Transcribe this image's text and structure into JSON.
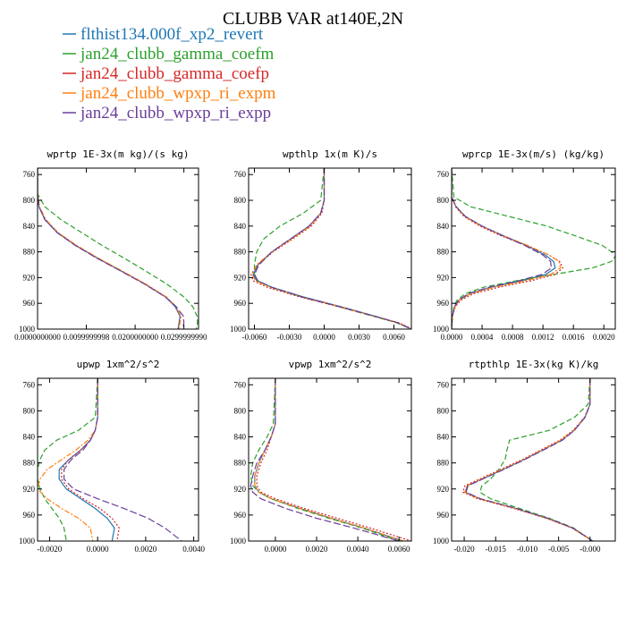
{
  "figure_title": "CLUBB VAR at140E,2N",
  "colors": {
    "flthist134.000f_xp2_revert": "#1f77b4",
    "jan24_clubb_gamma_coefm": "#2ca02c",
    "jan24_clubb_gamma_coefp": "#d62728",
    "jan24_clubb_wpxp_ri_expm": "#ff7f0e",
    "jan24_clubb_wpxp_ri_expp": "#6a3d9a"
  },
  "legend": [
    {
      "label": "flthist134.000f_xp2_revert",
      "color": "#1f77b4",
      "dash": "solid"
    },
    {
      "label": "jan24_clubb_gamma_coefm",
      "color": "#2ca02c",
      "dash": "dash"
    },
    {
      "label": "jan24_clubb_gamma_coefp",
      "color": "#d62728",
      "dash": "dot"
    },
    {
      "label": "jan24_clubb_wpxp_ri_expm",
      "color": "#ff7f0e",
      "dash": "dashdot"
    },
    {
      "label": "jan24_clubb_wpxp_ri_expp",
      "color": "#6a3d9a",
      "dash": "longdash"
    }
  ],
  "chart_data": [
    {
      "type": "line",
      "title": "wprtp  1E-3x(m kg)/(s kg)",
      "xlim": [
        0,
        0.033
      ],
      "ylim": [
        1000,
        750
      ],
      "xticks": [
        0,
        0.01,
        0.02,
        0.03
      ],
      "xticklabels": [
        "0.0000000000",
        "0.0099999998",
        "0.0200000000",
        "0.0299999990"
      ],
      "yticks": [
        760,
        800,
        840,
        880,
        920,
        960,
        1000
      ],
      "yticklabels": [
        "760",
        "800",
        "840",
        "880",
        "920",
        "960",
        "1000"
      ],
      "y": [
        750,
        790,
        810,
        830,
        850,
        870,
        890,
        910,
        930,
        950,
        965,
        980,
        990,
        1000
      ],
      "series": [
        {
          "name": "flthist134.000f_xp2_revert",
          "x": [
            0,
            0,
            0.0003,
            0.0015,
            0.004,
            0.0078,
            0.0123,
            0.0172,
            0.022,
            0.0262,
            0.0282,
            0.0292,
            0.029,
            0.0288
          ]
        },
        {
          "name": "jan24_clubb_gamma_coefm",
          "x": [
            0,
            0,
            0.0015,
            0.0048,
            0.009,
            0.0132,
            0.0178,
            0.0222,
            0.0265,
            0.03,
            0.0318,
            0.0327,
            0.0328,
            0.0325
          ]
        },
        {
          "name": "jan24_clubb_gamma_coefp",
          "x": [
            0,
            0,
            0.0003,
            0.0016,
            0.0041,
            0.0079,
            0.0124,
            0.0173,
            0.0221,
            0.0263,
            0.0283,
            0.0293,
            0.0291,
            0.0289
          ]
        },
        {
          "name": "jan24_clubb_wpxp_ri_expm",
          "x": [
            0,
            0,
            0.0004,
            0.0017,
            0.0042,
            0.008,
            0.0125,
            0.0174,
            0.0222,
            0.0264,
            0.0284,
            0.0294,
            0.0292,
            0.029
          ]
        },
        {
          "name": "jan24_clubb_wpxp_ri_expp",
          "x": [
            0,
            0,
            0.0003,
            0.0015,
            0.004,
            0.0077,
            0.0122,
            0.0171,
            0.0219,
            0.0262,
            0.0284,
            0.0299,
            0.03,
            0.0298
          ]
        }
      ]
    },
    {
      "type": "line",
      "title": "wpthlp  1x(m K)/s",
      "xlim": [
        -0.0065,
        0.0075
      ],
      "ylim": [
        1000,
        750
      ],
      "xticks": [
        -0.006,
        -0.003,
        0,
        0.003,
        0.006
      ],
      "xticklabels": [
        "-0.0060",
        "-0.0030",
        "0.0000",
        "0.0030",
        "0.0060"
      ],
      "yticks": [
        760,
        800,
        840,
        880,
        920,
        960,
        1000
      ],
      "yticklabels": [
        "760",
        "800",
        "840",
        "880",
        "920",
        "960",
        "1000"
      ],
      "y": [
        750,
        800,
        820,
        840,
        860,
        880,
        900,
        915,
        925,
        935,
        950,
        965,
        980,
        990,
        1000
      ],
      "series": [
        {
          "name": "flthist134.000f_xp2_revert",
          "x": [
            0,
            0,
            -0.0003,
            -0.0013,
            -0.0029,
            -0.0045,
            -0.0057,
            -0.0061,
            -0.0058,
            -0.0045,
            -0.0018,
            0.0014,
            0.0044,
            0.0063,
            0.0075
          ]
        },
        {
          "name": "jan24_clubb_gamma_coefm",
          "x": [
            0,
            -0.0003,
            -0.0018,
            -0.0038,
            -0.0052,
            -0.0058,
            -0.006,
            -0.006,
            -0.0057,
            -0.0046,
            -0.002,
            0.0012,
            0.0042,
            0.0062,
            0.0075
          ]
        },
        {
          "name": "jan24_clubb_gamma_coefp",
          "x": [
            0,
            0,
            -0.0002,
            -0.0011,
            -0.0027,
            -0.0044,
            -0.0057,
            -0.0063,
            -0.0061,
            -0.0049,
            -0.0021,
            0.0012,
            0.0043,
            0.0064,
            0.0076
          ]
        },
        {
          "name": "jan24_clubb_wpxp_ri_expm",
          "x": [
            0,
            0,
            -0.0003,
            -0.0012,
            -0.0028,
            -0.0045,
            -0.0058,
            -0.0062,
            -0.0059,
            -0.0046,
            -0.0019,
            0.0013,
            0.0043,
            0.0063,
            0.0075
          ]
        },
        {
          "name": "jan24_clubb_wpxp_ri_expp",
          "x": [
            0,
            0,
            -0.0003,
            -0.0013,
            -0.0029,
            -0.0045,
            -0.0056,
            -0.006,
            -0.0057,
            -0.0045,
            -0.0019,
            0.0013,
            0.0043,
            0.0063,
            0.0075
          ]
        }
      ]
    },
    {
      "type": "line",
      "title": "wprcp  1E-3x(m/s) (kg/kg)",
      "xlim": [
        0,
        0.00215
      ],
      "ylim": [
        1000,
        750
      ],
      "xticks": [
        0,
        0.0004,
        0.0008,
        0.0012,
        0.0016,
        0.002
      ],
      "xticklabels": [
        "0.0000",
        "0.0004",
        "0.0008",
        "0.0012",
        "0.0016",
        "0.0020"
      ],
      "yticks": [
        760,
        800,
        840,
        880,
        920,
        960,
        1000
      ],
      "yticklabels": [
        "760",
        "800",
        "840",
        "880",
        "920",
        "960",
        "1000"
      ],
      "y": [
        750,
        795,
        810,
        825,
        840,
        855,
        870,
        885,
        895,
        905,
        915,
        925,
        935,
        945,
        955,
        965,
        980,
        1000
      ],
      "series": [
        {
          "name": "flthist134.000f_xp2_revert",
          "x": [
            0,
            0,
            6e-05,
            0.00018,
            0.0004,
            0.00068,
            0.00098,
            0.00123,
            0.00134,
            0.00136,
            0.00124,
            0.00092,
            0.00052,
            0.00024,
            0.0001,
            4e-05,
            1e-05,
            0
          ]
        },
        {
          "name": "jan24_clubb_gamma_coefm",
          "x": [
            0,
            3e-05,
            0.00025,
            0.00075,
            0.00125,
            0.00162,
            0.00198,
            0.00216,
            0.0021,
            0.00185,
            0.00135,
            0.00085,
            0.00042,
            0.00018,
            7e-05,
            3e-05,
            1e-05,
            0
          ]
        },
        {
          "name": "jan24_clubb_gamma_coefp",
          "x": [
            0,
            0,
            5e-05,
            0.00016,
            0.00037,
            0.00065,
            0.00098,
            0.00128,
            0.00142,
            0.00146,
            0.00136,
            0.00104,
            0.00062,
            0.00029,
            0.00012,
            5e-05,
            1e-05,
            0
          ]
        },
        {
          "name": "jan24_clubb_wpxp_ri_expm",
          "x": [
            0,
            0,
            6e-05,
            0.00017,
            0.00039,
            0.00068,
            0.001,
            0.00128,
            0.00141,
            0.00143,
            0.0013,
            0.00097,
            0.00055,
            0.00025,
            0.0001,
            4e-05,
            1e-05,
            0
          ]
        },
        {
          "name": "jan24_clubb_wpxp_ri_expp",
          "x": [
            0,
            0,
            6e-05,
            0.00018,
            0.0004,
            0.00067,
            0.00096,
            0.0012,
            0.0013,
            0.00131,
            0.00119,
            0.00088,
            0.00049,
            0.00022,
            9e-05,
            4e-05,
            1e-05,
            0
          ]
        }
      ]
    },
    {
      "type": "line",
      "title": "upwp  1xm^2/s^2",
      "xlim": [
        -0.0025,
        0.0042
      ],
      "ylim": [
        1000,
        750
      ],
      "xticks": [
        -0.002,
        0,
        0.002,
        0.004
      ],
      "xticklabels": [
        "-0.0020",
        "0.0000",
        "0.0020",
        "0.0040"
      ],
      "yticks": [
        760,
        800,
        840,
        880,
        920,
        960,
        1000
      ],
      "yticklabels": [
        "760",
        "800",
        "840",
        "880",
        "920",
        "960",
        "1000"
      ],
      "y": [
        750,
        810,
        830,
        845,
        860,
        875,
        890,
        905,
        920,
        935,
        950,
        965,
        980,
        1000
      ],
      "series": [
        {
          "name": "flthist134.000f_xp2_revert",
          "x": [
            0,
            0,
            -0.0001,
            -0.0003,
            -0.0007,
            -0.0012,
            -0.0016,
            -0.0016,
            -0.0013,
            -0.0007,
            -0.0001,
            0.0004,
            0.0007,
            0.0006
          ]
        },
        {
          "name": "jan24_clubb_gamma_coefm",
          "x": [
            0,
            -0.0001,
            -0.0008,
            -0.0017,
            -0.0022,
            -0.0024,
            -0.0025,
            -0.0025,
            -0.0024,
            -0.0022,
            -0.0019,
            -0.0016,
            -0.0014,
            -0.0013
          ]
        },
        {
          "name": "jan24_clubb_gamma_coefp",
          "x": [
            0,
            0,
            -0.0001,
            -0.0003,
            -0.0007,
            -0.0012,
            -0.0015,
            -0.0015,
            -0.0012,
            -0.0006,
            0.0001,
            0.0006,
            0.0009,
            0.0008
          ]
        },
        {
          "name": "jan24_clubb_wpxp_ri_expm",
          "x": [
            0,
            0,
            -0.0001,
            -0.0004,
            -0.0009,
            -0.0015,
            -0.0021,
            -0.0024,
            -0.0025,
            -0.0021,
            -0.0015,
            -0.0008,
            -0.0003,
            -0.0002
          ]
        },
        {
          "name": "jan24_clubb_wpxp_ri_expp",
          "x": [
            0,
            0,
            -0.0001,
            -0.0003,
            -0.0006,
            -0.0011,
            -0.0014,
            -0.0014,
            -0.001,
            0,
            0.0011,
            0.0021,
            0.0028,
            0.0035
          ]
        }
      ]
    },
    {
      "type": "line",
      "title": "vpwp  1xm^2/s^2",
      "xlim": [
        -0.0013,
        0.0066
      ],
      "ylim": [
        1000,
        750
      ],
      "xticks": [
        0,
        0.002,
        0.004,
        0.006
      ],
      "xticklabels": [
        "0.0000",
        "0.0020",
        "0.0040",
        "0.0060"
      ],
      "yticks": [
        760,
        800,
        840,
        880,
        920,
        960,
        1000
      ],
      "yticklabels": [
        "760",
        "800",
        "840",
        "880",
        "920",
        "960",
        "1000"
      ],
      "y": [
        750,
        820,
        840,
        860,
        880,
        900,
        915,
        925,
        935,
        950,
        965,
        980,
        1000
      ],
      "series": [
        {
          "name": "flthist134.000f_xp2_revert",
          "x": [
            0,
            0,
            -0.0002,
            -0.0005,
            -0.0008,
            -0.001,
            -0.001,
            -0.0008,
            -0.0002,
            0.0012,
            0.0027,
            0.0043,
            0.0062
          ]
        },
        {
          "name": "jan24_clubb_gamma_coefm",
          "x": [
            0,
            -0.0001,
            -0.0004,
            -0.0008,
            -0.0011,
            -0.0012,
            -0.0011,
            -0.0008,
            -0.0002,
            0.0011,
            0.0026,
            0.0042,
            0.006
          ]
        },
        {
          "name": "jan24_clubb_gamma_coefp",
          "x": [
            0,
            0,
            -0.0002,
            -0.0004,
            -0.0007,
            -0.0009,
            -0.0009,
            -0.0007,
            0,
            0.0014,
            0.003,
            0.0046,
            0.0066
          ]
        },
        {
          "name": "jan24_clubb_wpxp_ri_expm",
          "x": [
            0,
            0,
            -0.0002,
            -0.0005,
            -0.0008,
            -0.001,
            -0.001,
            -0.0008,
            -0.0002,
            0.0012,
            0.0027,
            0.0043,
            0.0062
          ]
        },
        {
          "name": "jan24_clubb_wpxp_ri_expp",
          "x": [
            0,
            0,
            -0.0002,
            -0.0005,
            -0.0009,
            -0.0011,
            -0.0012,
            -0.0011,
            -0.0007,
            0.0005,
            0.002,
            0.0038,
            0.006
          ]
        }
      ]
    },
    {
      "type": "line",
      "title": "rtpthlp  1E-3x(kg K)/kg",
      "xlim": [
        -0.022,
        0.004
      ],
      "ylim": [
        1000,
        750
      ],
      "xticks": [
        -0.02,
        -0.015,
        -0.01,
        -0.005,
        0
      ],
      "xticklabels": [
        "-0.020",
        "-0.015",
        "-0.010",
        "-0.005",
        "-0.000"
      ],
      "yticks": [
        760,
        800,
        840,
        880,
        920,
        960,
        1000
      ],
      "yticklabels": [
        "760",
        "800",
        "840",
        "880",
        "920",
        "960",
        "1000"
      ],
      "y": [
        750,
        790,
        810,
        830,
        845,
        860,
        875,
        890,
        905,
        915,
        925,
        935,
        950,
        965,
        980,
        1000
      ],
      "series": [
        {
          "name": "flthist134.000f_xp2_revert",
          "x": [
            0,
            0,
            -0.0008,
            -0.0025,
            -0.0045,
            -0.0075,
            -0.0105,
            -0.0138,
            -0.0172,
            -0.0195,
            -0.0198,
            -0.0175,
            -0.0118,
            -0.0068,
            -0.0028,
            0.0004
          ]
        },
        {
          "name": "jan24_clubb_gamma_coefm",
          "x": [
            0,
            -0.0003,
            -0.0025,
            -0.0065,
            -0.0128,
            -0.0132,
            -0.0135,
            -0.0145,
            -0.0158,
            -0.0172,
            -0.0175,
            -0.0158,
            -0.0112,
            -0.0065,
            -0.0026,
            0.0004
          ]
        },
        {
          "name": "jan24_clubb_gamma_coefp",
          "x": [
            0,
            0,
            -0.0009,
            -0.0027,
            -0.0048,
            -0.0078,
            -0.0108,
            -0.0142,
            -0.0176,
            -0.0199,
            -0.0202,
            -0.0179,
            -0.0121,
            -0.007,
            -0.0029,
            0.0004
          ]
        },
        {
          "name": "jan24_clubb_wpxp_ri_expm",
          "x": [
            0,
            0,
            -0.0008,
            -0.0026,
            -0.0046,
            -0.0076,
            -0.0106,
            -0.0139,
            -0.0173,
            -0.0196,
            -0.0199,
            -0.0176,
            -0.0119,
            -0.0069,
            -0.0028,
            0.0004
          ]
        },
        {
          "name": "jan24_clubb_wpxp_ri_expp",
          "x": [
            0,
            0,
            -0.0008,
            -0.0025,
            -0.0044,
            -0.0074,
            -0.0104,
            -0.0137,
            -0.0171,
            -0.0194,
            -0.0197,
            -0.0174,
            -0.0117,
            -0.0067,
            -0.0027,
            0.0004
          ]
        }
      ]
    }
  ]
}
